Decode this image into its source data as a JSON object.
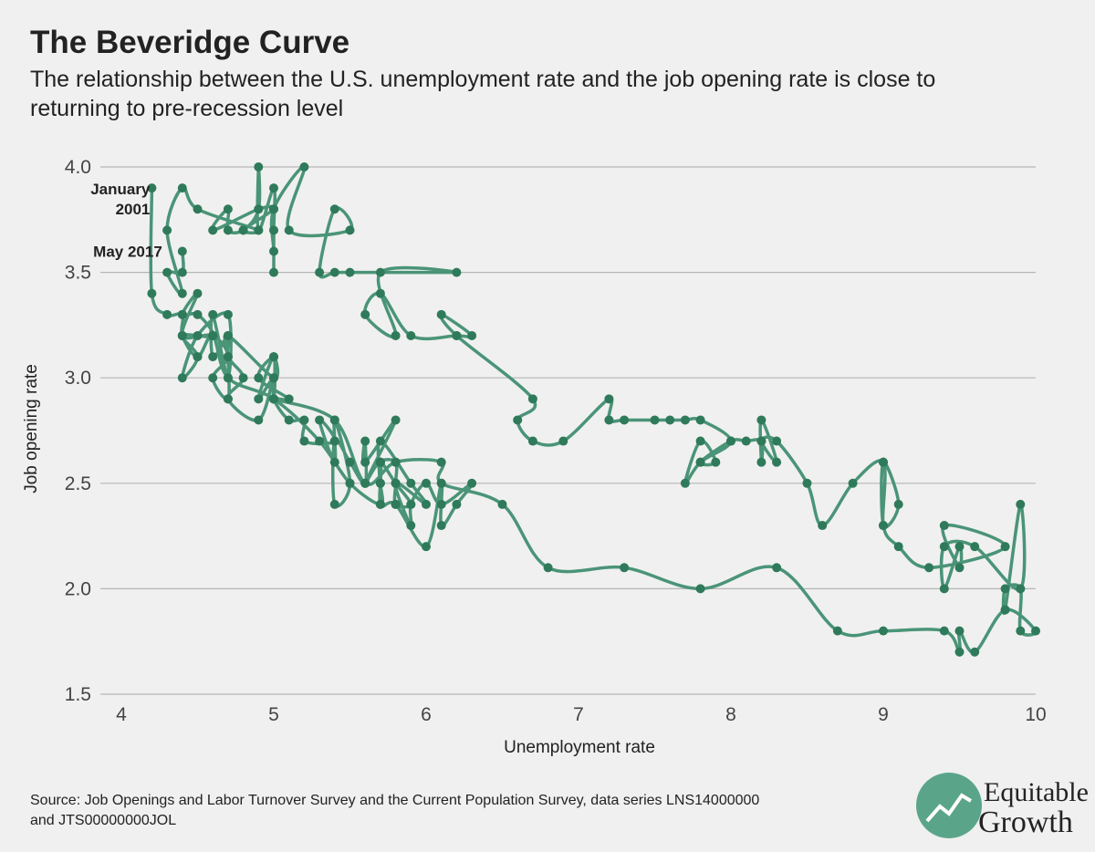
{
  "chart_data": {
    "type": "connected-scatter",
    "title": "The Beveridge Curve",
    "subtitle": [
      "The relationship between the U.S. unemployment rate and the job opening rate is close to",
      "returning to pre-recession level"
    ],
    "x_label": "Unemployment rate",
    "y_label": "Job opening rate",
    "annotations": [
      [
        "January",
        "2001"
      ],
      [
        "May 2017"
      ]
    ],
    "source": [
      "Source: Job Openings and Labor Turnover Survey and the Current Population Survey, data series LNS14000000",
      "and JTS00000000JOL"
    ],
    "logo": [
      "Equitable",
      "Growth"
    ],
    "color": "#4a9478",
    "marker_color": "#2f7a5a",
    "grid": true,
    "xlim": [
      4,
      10
    ],
    "xticks": [
      4,
      5,
      6,
      7,
      8,
      9,
      10
    ],
    "ylim": [
      1.5,
      4.0
    ],
    "yticks": [
      {
        "value": 1.5,
        "label": "1.5"
      },
      {
        "value": 2,
        "label": "2.0"
      },
      {
        "value": 2.5,
        "label": "2.5"
      },
      {
        "value": 3,
        "label": "3.0"
      },
      {
        "value": 3.5,
        "label": "3.5"
      },
      {
        "value": 4,
        "label": "4.0"
      }
    ],
    "x": [
      4.2,
      4.2,
      4.3,
      4.4,
      4.4,
      4.5,
      4.6,
      4.7,
      5.0,
      5.3,
      5.5,
      5.7,
      5.7,
      5.7,
      5.8,
      5.9,
      5.8,
      5.8,
      5.8,
      5.7,
      5.7,
      5.7,
      5.9,
      6.0,
      5.8,
      5.9,
      5.9,
      6.0,
      6.1,
      6.3,
      6.2,
      6.1,
      6.1,
      6.0,
      5.8,
      5.7,
      5.7,
      5.6,
      5.8,
      5.6,
      5.6,
      5.6,
      5.5,
      5.4,
      5.4,
      5.5,
      5.4,
      5.4,
      5.3,
      5.4,
      5.2,
      5.2,
      5.1,
      5.0,
      5.0,
      4.9,
      5.0,
      5.0,
      5.0,
      4.9,
      4.7,
      4.8,
      4.7,
      4.7,
      4.6,
      4.6,
      4.7,
      4.7,
      4.5,
      4.4,
      4.5,
      4.4,
      4.6,
      4.5,
      4.4,
      4.5,
      4.4,
      4.6,
      4.7,
      4.6,
      4.7,
      4.7,
      4.7,
      5.0,
      5.0,
      4.9,
      5.1,
      5.0,
      5.4,
      5.6,
      5.8,
      6.1,
      6.1,
      6.5,
      6.8,
      7.3,
      7.8,
      8.3,
      8.7,
      9.0,
      9.4,
      9.5,
      9.5,
      9.6,
      9.8,
      10.0,
      9.9,
      9.9,
      9.8,
      9.8,
      9.9,
      9.9,
      9.6,
      9.4,
      9.4,
      9.5,
      9.5,
      9.4,
      9.8,
      9.3,
      9.1,
      9.0,
      9.0,
      9.1,
      9.0,
      9.0,
      8.8,
      8.6,
      8.5,
      8.3,
      8.2,
      8.3,
      8.2,
      8.2,
      8.2,
      8.1,
      8.0,
      7.8,
      7.9,
      7.8,
      7.7,
      7.8,
      8.0,
      7.8,
      7.7,
      7.6,
      7.5,
      7.3,
      7.2,
      7.2,
      6.9,
      6.7,
      6.6,
      6.7,
      6.2,
      6.1,
      6.3,
      6.2,
      5.9,
      5.7,
      5.6,
      5.8,
      5.7,
      6.2,
      5.5,
      5.4,
      5.3,
      5.4,
      5.5,
      5.1,
      5.2,
      5.0,
      5.0,
      5.0,
      5.0,
      5.0,
      4.9,
      4.9,
      4.9,
      4.8,
      4.7,
      4.7,
      4.6,
      4.9,
      5.0,
      4.8,
      4.9,
      4.5,
      4.4,
      4.3,
      4.4,
      4.3,
      4.4,
      4.4
    ],
    "values": [
      3.9,
      3.4,
      3.3,
      3.3,
      3.2,
      3.1,
      3.2,
      3.0,
      2.9,
      2.7,
      2.5,
      2.4,
      2.5,
      2.6,
      2.5,
      2.4,
      2.4,
      2.5,
      2.6,
      2.6,
      2.5,
      2.7,
      2.5,
      2.4,
      2.5,
      2.3,
      2.4,
      2.5,
      2.4,
      2.5,
      2.4,
      2.3,
      2.5,
      2.2,
      2.4,
      2.4,
      2.6,
      2.5,
      2.8,
      2.6,
      2.7,
      2.5,
      2.6,
      2.7,
      2.4,
      2.5,
      2.8,
      2.6,
      2.8,
      2.7,
      2.7,
      2.8,
      2.8,
      2.9,
      3.0,
      2.9,
      3.1,
      2.9,
      3.0,
      2.8,
      2.9,
      3.0,
      3.1,
      3.2,
      3.1,
      3.3,
      3.0,
      3.3,
      3.2,
      3.0,
      3.1,
      3.2,
      3.2,
      3.3,
      3.3,
      3.4,
      3.2,
      3.2,
      3.1,
      3.0,
      2.9,
      3.1,
      3.2,
      3.0,
      3.1,
      3.0,
      2.9,
      2.9,
      2.8,
      2.5,
      2.6,
      2.6,
      2.5,
      2.4,
      2.1,
      2.1,
      2.0,
      2.1,
      1.8,
      1.8,
      1.8,
      1.7,
      1.8,
      1.7,
      1.9,
      1.8,
      1.8,
      2.0,
      2.0,
      1.9,
      2.4,
      2.0,
      2.2,
      2.2,
      2.0,
      2.2,
      2.1,
      2.3,
      2.2,
      2.1,
      2.2,
      2.3,
      2.6,
      2.4,
      2.3,
      2.6,
      2.5,
      2.3,
      2.5,
      2.7,
      2.7,
      2.6,
      2.8,
      2.6,
      2.7,
      2.7,
      2.7,
      2.6,
      2.6,
      2.7,
      2.5,
      2.6,
      2.7,
      2.8,
      2.8,
      2.8,
      2.8,
      2.8,
      2.8,
      2.9,
      2.7,
      2.7,
      2.8,
      2.9,
      3.2,
      3.3,
      3.2,
      3.2,
      3.2,
      3.4,
      3.3,
      3.2,
      3.5,
      3.5,
      3.5,
      3.5,
      3.5,
      3.8,
      3.7,
      3.7,
      4.0,
      3.8,
      3.6,
      3.5,
      3.7,
      3.9,
      3.7,
      4.0,
      3.8,
      3.7,
      3.7,
      3.8,
      3.7,
      3.8,
      3.8,
      3.7,
      3.7,
      3.8,
      3.9,
      3.7,
      3.4,
      3.5,
      3.5,
      3.6
    ]
  }
}
